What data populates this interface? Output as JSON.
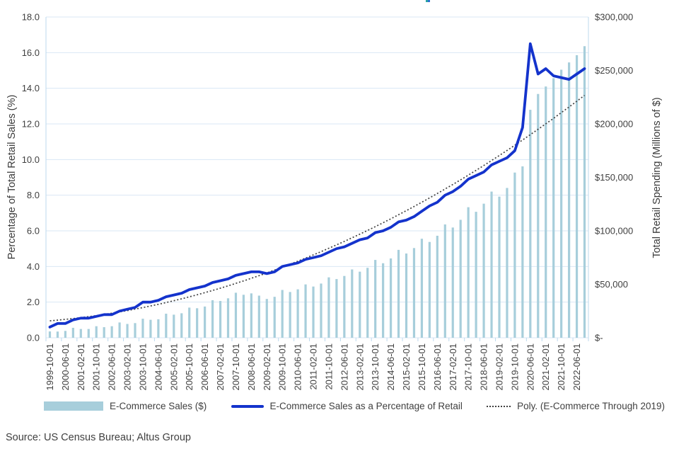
{
  "source_note": "Source: US Census Bureau; Altus Group",
  "legend": [
    {
      "label": "E-Commerce Sales ($)",
      "swatch": "bar",
      "color": "#a7cedb"
    },
    {
      "label": "E-Commerce Sales as a Percentage of Retail",
      "swatch": "line",
      "color": "#1433cc"
    },
    {
      "label": "Poly. (E-Commerce Through 2019)",
      "swatch": "dotted-line",
      "color": "#404040"
    }
  ],
  "chart_data": {
    "type": "combo",
    "grid": true,
    "legend_position": "bottom",
    "grid_color": "#d9e7f5",
    "tick_color": "#bcd9ee",
    "text_color": "#404040",
    "x_tick_step": 2,
    "x": [
      "1999-10-01",
      "2000-02-01",
      "2000-06-01",
      "2000-10-01",
      "2001-02-01",
      "2001-06-01",
      "2001-10-01",
      "2002-02-01",
      "2002-06-01",
      "2002-10-01",
      "2003-02-01",
      "2003-06-01",
      "2003-10-01",
      "2004-02-01",
      "2004-06-01",
      "2004-10-01",
      "2005-02-01",
      "2005-06-01",
      "2005-10-01",
      "2006-02-01",
      "2006-06-01",
      "2006-10-01",
      "2007-02-01",
      "2007-06-01",
      "2007-10-01",
      "2008-02-01",
      "2008-06-01",
      "2008-10-01",
      "2009-02-01",
      "2009-06-01",
      "2009-10-01",
      "2010-02-01",
      "2010-06-01",
      "2010-10-01",
      "2011-02-01",
      "2011-06-01",
      "2011-10-01",
      "2012-02-01",
      "2012-06-01",
      "2012-10-01",
      "2013-02-01",
      "2013-06-01",
      "2013-10-01",
      "2014-02-01",
      "2014-06-01",
      "2014-10-01",
      "2015-02-01",
      "2015-06-01",
      "2015-10-01",
      "2016-02-01",
      "2016-06-01",
      "2016-10-01",
      "2017-02-01",
      "2017-06-01",
      "2017-10-01",
      "2018-02-01",
      "2018-06-01",
      "2018-10-01",
      "2019-02-01",
      "2019-06-01",
      "2019-10-01",
      "2020-02-01",
      "2020-06-01",
      "2020-10-01",
      "2021-02-01",
      "2021-06-01",
      "2021-10-01",
      "2022-02-01",
      "2022-06-01",
      "2022-10-01"
    ],
    "left_axis": {
      "title": "Percentage of Total Retail Sales (%)",
      "min": 0,
      "max": 18,
      "step": 2,
      "ticks": [
        "0.0",
        "2.0",
        "4.0",
        "6.0",
        "8.0",
        "10.0",
        "12.0",
        "14.0",
        "16.0",
        "18.0"
      ]
    },
    "right_axis": {
      "title": "Total Retail Spending (Millions of $)",
      "min": 0,
      "max": 300000,
      "step": 50000,
      "ticks": [
        "$-",
        "$50,000",
        "$100,000",
        "$150,000",
        "$200,000",
        "$250,000",
        "$300,000"
      ]
    },
    "series": [
      {
        "name": "E-Commerce Sales ($)",
        "type": "bar",
        "axis": "right",
        "color": "#a7cedb",
        "values": [
          5900,
          5800,
          6400,
          9300,
          8200,
          8200,
          10800,
          9900,
          10800,
          14300,
          12900,
          13700,
          17800,
          16800,
          17300,
          22500,
          21600,
          22900,
          28200,
          27600,
          29200,
          35100,
          34400,
          36900,
          42100,
          40200,
          41500,
          39400,
          36300,
          38300,
          44700,
          42800,
          45300,
          49900,
          47900,
          50700,
          56500,
          54900,
          57800,
          63900,
          61800,
          65400,
          72800,
          69700,
          74200,
          82200,
          78800,
          83900,
          92600,
          89600,
          95400,
          106000,
          103100,
          110300,
          122100,
          117800,
          125400,
          136700,
          132000,
          140100,
          154500,
          160300,
          213200,
          228000,
          235000,
          242800,
          250700,
          257500,
          264300,
          272700
        ]
      },
      {
        "name": "E-Commerce Sales as a Percentage of Retail",
        "type": "line",
        "axis": "left",
        "color": "#1433cc",
        "values": [
          0.6,
          0.8,
          0.8,
          1.0,
          1.1,
          1.1,
          1.2,
          1.3,
          1.3,
          1.5,
          1.6,
          1.7,
          2.0,
          2.0,
          2.1,
          2.3,
          2.4,
          2.5,
          2.7,
          2.8,
          2.9,
          3.1,
          3.2,
          3.3,
          3.5,
          3.6,
          3.7,
          3.7,
          3.6,
          3.7,
          4.0,
          4.1,
          4.2,
          4.4,
          4.5,
          4.6,
          4.8,
          5.0,
          5.1,
          5.3,
          5.5,
          5.6,
          5.9,
          6.0,
          6.2,
          6.5,
          6.6,
          6.8,
          7.1,
          7.4,
          7.6,
          8.0,
          8.2,
          8.5,
          8.9,
          9.1,
          9.3,
          9.7,
          9.9,
          10.1,
          10.5,
          11.8,
          16.5,
          14.8,
          15.1,
          14.7,
          14.6,
          14.5,
          14.8,
          15.1
        ]
      },
      {
        "name": "Poly. (E-Commerce Through 2019)",
        "type": "poly-trendline",
        "axis": "left",
        "color": "#404040",
        "style": "dotted",
        "poly_coeffs": [
          0.95,
          0.0364,
          0.00213
        ],
        "start_value": 0.95,
        "end_value": 13.6
      }
    ]
  }
}
